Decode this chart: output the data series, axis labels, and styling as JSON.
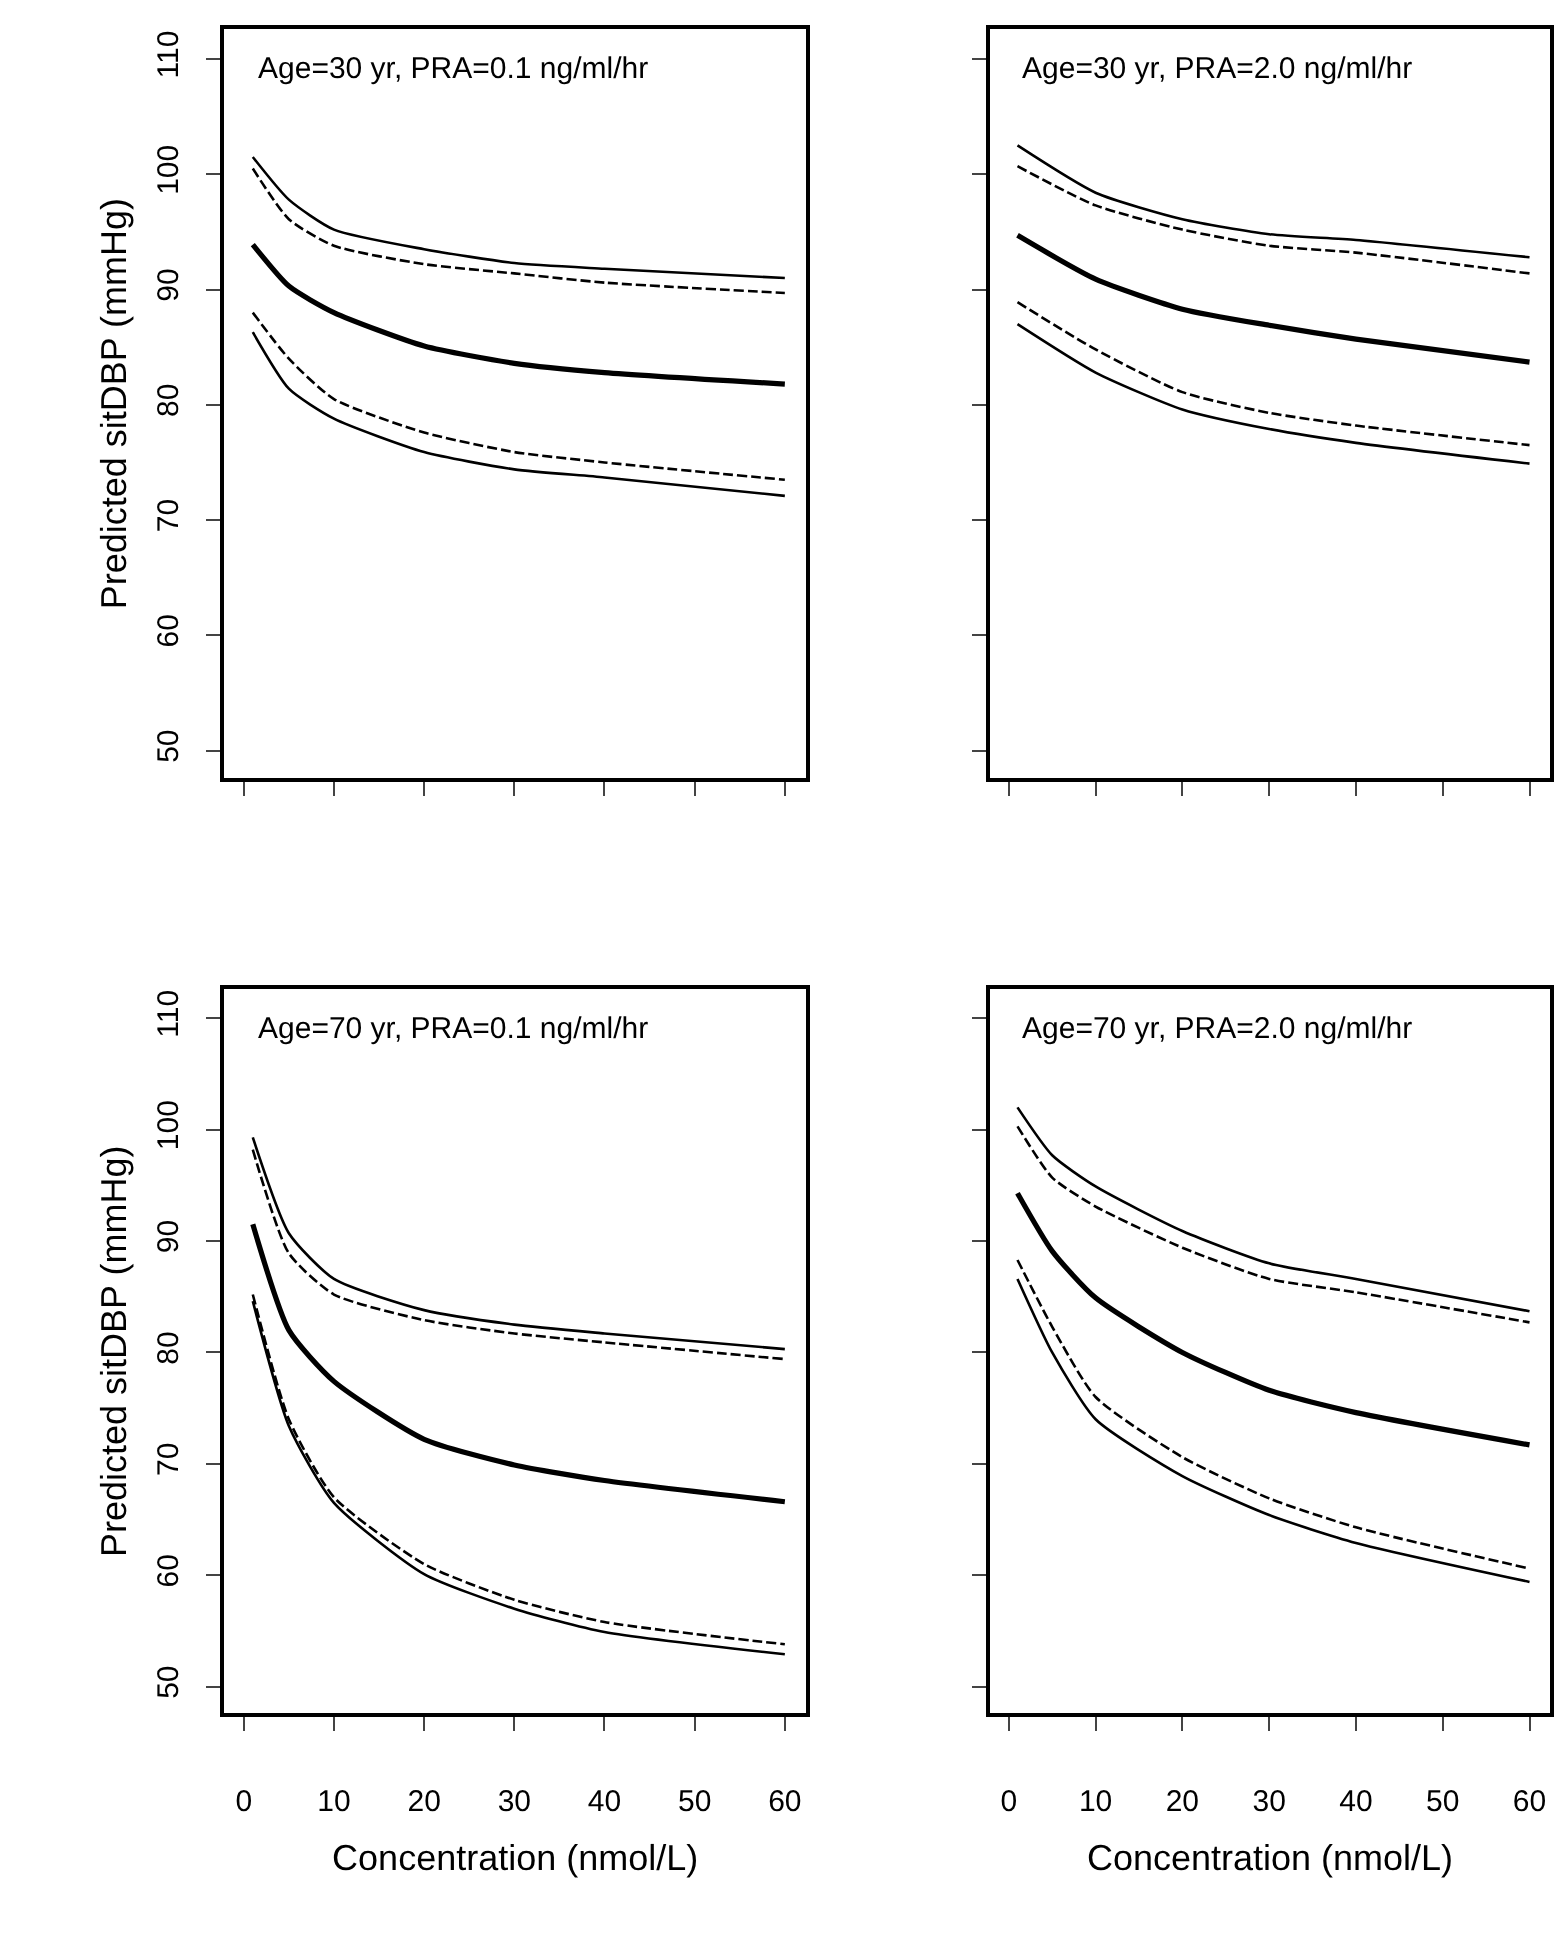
{
  "chart_data": [
    {
      "type": "line",
      "title": "Age=30 yr, PRA=0.1 ng/ml/hr",
      "ylabel": "Predicted sitDBP (mmHg)",
      "tick_labels": "y",
      "xlim": [
        -2.2,
        62.4
      ],
      "ylim": [
        47.6,
        112.6
      ],
      "xticks": [
        {
          "value": 0,
          "label": null
        },
        {
          "value": 10,
          "label": null
        },
        {
          "value": 20,
          "label": null
        },
        {
          "value": 30,
          "label": null
        },
        {
          "value": 40,
          "label": null
        },
        {
          "value": 50,
          "label": null
        },
        {
          "value": 60,
          "label": null
        }
      ],
      "yticks": [
        50,
        60,
        70,
        80,
        90,
        100,
        110
      ],
      "x": [
        1,
        5,
        10,
        20,
        30,
        40,
        60
      ],
      "series": [
        {
          "color": "#000000",
          "line_style": "solid",
          "values": [
            101.5,
            97.8,
            95.2,
            93.5,
            92.3,
            91.8,
            91.0
          ]
        },
        {
          "color": "#000000",
          "line_style": "dashed",
          "values": [
            100.5,
            96.1,
            93.8,
            92.2,
            91.4,
            90.6,
            89.7
          ]
        },
        {
          "color": "#000000",
          "line_style": "solid",
          "values": [
            93.9,
            90.3,
            88.0,
            85.1,
            83.6,
            82.8,
            81.8
          ]
        },
        {
          "color": "#000000",
          "line_style": "dashed",
          "values": [
            88.0,
            84.0,
            80.5,
            77.6,
            75.9,
            75.0,
            73.5
          ]
        },
        {
          "color": "#000000",
          "line_style": "solid",
          "values": [
            86.3,
            81.4,
            78.8,
            75.9,
            74.4,
            73.7,
            72.1
          ]
        }
      ]
    },
    {
      "type": "line",
      "title": "Age=30 yr, PRA=2.0 ng/ml/hr",
      "tick_labels": false,
      "xlim": [
        -2.2,
        62.4
      ],
      "ylim": [
        47.6,
        112.6
      ],
      "xticks": [
        {
          "value": 0,
          "label": null
        },
        {
          "value": 10,
          "label": null
        },
        {
          "value": 20,
          "label": null
        },
        {
          "value": 30,
          "label": null
        },
        {
          "value": 40,
          "label": null
        },
        {
          "value": 50,
          "label": null
        },
        {
          "value": 60,
          "label": null
        }
      ],
      "yticks": [
        {
          "value": 50,
          "label": null
        },
        {
          "value": 60,
          "label": null
        },
        {
          "value": 70,
          "label": null
        },
        {
          "value": 80,
          "label": null
        },
        {
          "value": 90,
          "label": null
        },
        {
          "value": 100,
          "label": null
        },
        {
          "value": 110,
          "label": null
        }
      ],
      "x": [
        1,
        10,
        20,
        30,
        40,
        60
      ],
      "series": [
        {
          "color": "#000000",
          "line_style": "solid",
          "values": [
            102.5,
            98.4,
            96.1,
            94.8,
            94.3,
            92.8
          ]
        },
        {
          "color": "#000000",
          "line_style": "dashed",
          "values": [
            100.7,
            97.3,
            95.2,
            93.8,
            93.2,
            91.4
          ]
        },
        {
          "color": "#000000",
          "line_style": "solid",
          "values": [
            94.7,
            90.9,
            88.3,
            86.9,
            85.7,
            83.7
          ]
        },
        {
          "color": "#000000",
          "line_style": "dashed",
          "values": [
            88.9,
            84.8,
            81.1,
            79.3,
            78.2,
            76.5
          ]
        },
        {
          "color": "#000000",
          "line_style": "solid",
          "values": [
            87.0,
            82.8,
            79.6,
            77.9,
            76.7,
            74.9
          ]
        }
      ]
    },
    {
      "type": "line",
      "title": "Age=70 yr, PRA=0.1 ng/ml/hr",
      "xlabel": "Concentration (nmol/L)",
      "ylabel": "Predicted sitDBP (mmHg)",
      "xlim": [
        -2.2,
        62.4
      ],
      "ylim": [
        47.6,
        112.6
      ],
      "xticks": [
        0,
        10,
        20,
        30,
        40,
        50,
        60
      ],
      "yticks": [
        50,
        60,
        70,
        80,
        90,
        100,
        110
      ],
      "x": [
        1,
        5,
        10,
        20,
        30,
        40,
        60
      ],
      "series": [
        {
          "color": "#000000",
          "line_style": "solid",
          "values": [
            99.3,
            90.7,
            86.6,
            83.8,
            82.5,
            81.7,
            80.3
          ]
        },
        {
          "color": "#000000",
          "line_style": "dashed",
          "values": [
            98.2,
            88.9,
            85.2,
            82.9,
            81.7,
            80.9,
            79.4
          ]
        },
        {
          "color": "#000000",
          "line_style": "solid",
          "values": [
            91.5,
            82.0,
            77.4,
            72.2,
            69.9,
            68.5,
            66.6
          ]
        },
        {
          "color": "#000000",
          "line_style": "dashed",
          "values": [
            85.2,
            74.0,
            67.0,
            61.0,
            57.8,
            55.8,
            53.8
          ]
        },
        {
          "color": "#000000",
          "line_style": "solid",
          "values": [
            84.6,
            73.4,
            66.5,
            60.1,
            57.0,
            54.9,
            52.9
          ]
        }
      ]
    },
    {
      "type": "line",
      "title": "Age=70 yr, PRA=2.0 ng/ml/hr",
      "xlabel": "Concentration (nmol/L)",
      "tick_labels": "x",
      "xlim": [
        -2.2,
        62.4
      ],
      "ylim": [
        47.6,
        112.6
      ],
      "xticks": [
        0,
        10,
        20,
        30,
        40,
        50,
        60
      ],
      "yticks": [
        {
          "value": 50,
          "label": null
        },
        {
          "value": 60,
          "label": null
        },
        {
          "value": 70,
          "label": null
        },
        {
          "value": 80,
          "label": null
        },
        {
          "value": 90,
          "label": null
        },
        {
          "value": 100,
          "label": null
        },
        {
          "value": 110,
          "label": null
        }
      ],
      "x": [
        1,
        5,
        10,
        20,
        30,
        40,
        60
      ],
      "series": [
        {
          "color": "#000000",
          "line_style": "solid",
          "values": [
            102.0,
            97.7,
            94.9,
            90.9,
            88.0,
            86.6,
            83.7
          ]
        },
        {
          "color": "#000000",
          "line_style": "dashed",
          "values": [
            100.3,
            95.7,
            93.1,
            89.4,
            86.6,
            85.4,
            82.7
          ]
        },
        {
          "color": "#000000",
          "line_style": "solid",
          "values": [
            94.3,
            89.1,
            84.9,
            80.0,
            76.6,
            74.6,
            71.7
          ]
        },
        {
          "color": "#000000",
          "line_style": "dashed",
          "values": [
            88.3,
            82.3,
            76.0,
            70.6,
            66.9,
            64.3,
            60.6
          ]
        },
        {
          "color": "#000000",
          "line_style": "solid",
          "values": [
            86.6,
            80.0,
            74.0,
            68.9,
            65.4,
            62.9,
            59.4
          ]
        }
      ]
    }
  ]
}
